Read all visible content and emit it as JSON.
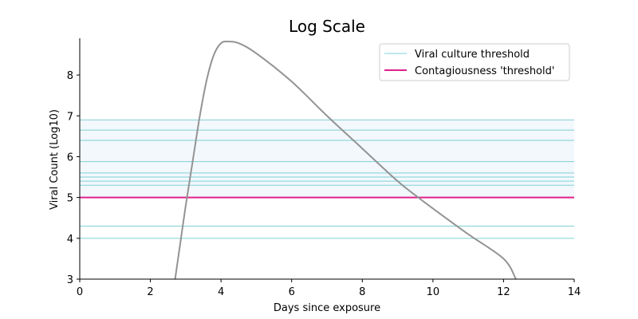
{
  "chart_data": {
    "type": "line",
    "title": "Log Scale",
    "xlabel": "Days since exposure",
    "ylabel": "Viral Count (Log10)",
    "xlim": [
      0,
      14
    ],
    "ylim": [
      3,
      8.9
    ],
    "xticks": [
      0,
      2,
      4,
      6,
      8,
      10,
      12,
      14
    ],
    "yticks": [
      3,
      4,
      5,
      6,
      7,
      8
    ],
    "grid": false,
    "legend_position": "top-right",
    "colors": {
      "curve": "#939393",
      "culture_threshold": "#7fd0d4",
      "contagiousness_threshold": "#e0218a",
      "band": "#f2f8fc"
    },
    "series": [
      {
        "x": [
          2.7,
          2.85,
          3.0,
          3.2,
          3.4,
          3.6,
          3.8,
          4.0,
          4.2,
          4.5,
          5.0,
          6.0,
          7.0,
          8.0,
          9.0,
          9.6,
          10.0,
          11.0,
          12.0,
          12.35
        ],
        "values": [
          3.0,
          3.9,
          4.8,
          5.9,
          7.0,
          7.9,
          8.5,
          8.78,
          8.82,
          8.78,
          8.53,
          7.84,
          7.0,
          6.2,
          5.4,
          4.99,
          4.73,
          4.1,
          3.5,
          3.0
        ]
      },
      {
        "name": "Viral culture threshold",
        "style": "hlines",
        "values": [
          6.9,
          6.65,
          6.4,
          5.88,
          5.6,
          5.5,
          5.4,
          5.3,
          4.3,
          4.0
        ]
      },
      {
        "name": "Contagiousness 'threshold'",
        "style": "hline",
        "values": [
          5.0
        ]
      }
    ]
  }
}
